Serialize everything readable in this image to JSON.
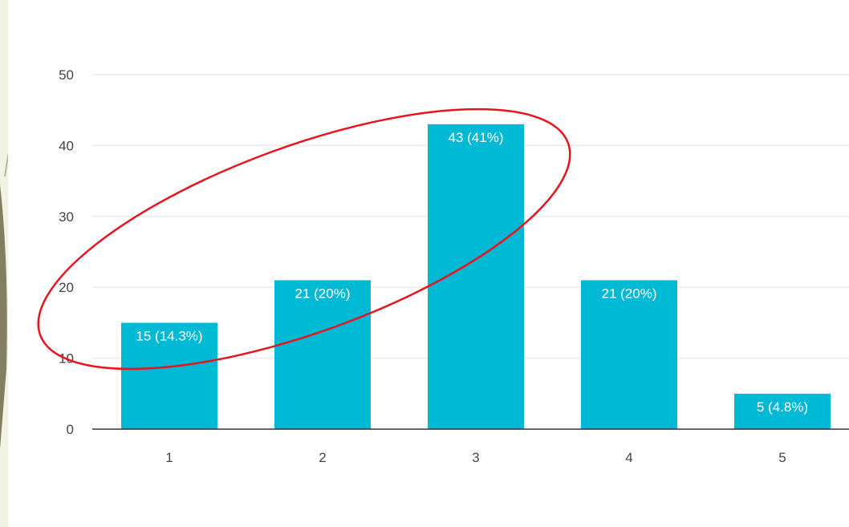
{
  "colors": {
    "bar": "#00b9d4",
    "grid": "#ebebeb",
    "axis": "#333333",
    "annotation": "#e8141e",
    "background": "#f1f1e4",
    "decor": "#6f6a48"
  },
  "chart_data": {
    "type": "bar",
    "categories": [
      "1",
      "2",
      "3",
      "4",
      "5"
    ],
    "values": [
      15,
      21,
      43,
      21,
      5
    ],
    "value_labels": [
      "15 (14.3%)",
      "21 (20%)",
      "43 (41%)",
      "21 (20%)",
      "5 (4.8%)"
    ],
    "ylim": [
      0,
      50
    ],
    "yticks": [
      0,
      10,
      20,
      30,
      40,
      50
    ],
    "grid": true,
    "legend": "none",
    "title": "",
    "xlabel": "",
    "ylabel": ""
  }
}
